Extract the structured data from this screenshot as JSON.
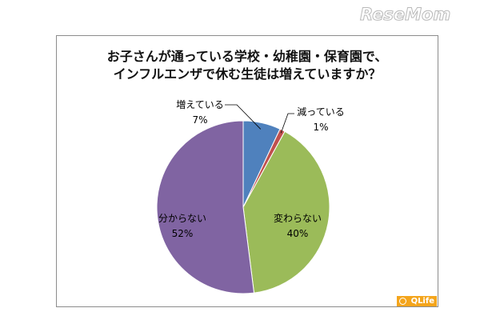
{
  "watermark": "ReseMom",
  "logo": "QLife",
  "chart_data": {
    "type": "pie",
    "title_lines": [
      "お子さんが通っている学校・幼稚園・保育園で、",
      "インフルエンザで休む生徒は増えていますか？"
    ],
    "series": [
      {
        "label": "増えている",
        "value": 7,
        "value_label": "7%",
        "color": "#4f81bd"
      },
      {
        "label": "減っている",
        "value": 1,
        "value_label": "1%",
        "color": "#c0504d"
      },
      {
        "label": "変わらない",
        "value": 40,
        "value_label": "40%",
        "color": "#9bbb59"
      },
      {
        "label": "分からない",
        "value": 52,
        "value_label": "52%",
        "color": "#8064a2"
      }
    ]
  }
}
